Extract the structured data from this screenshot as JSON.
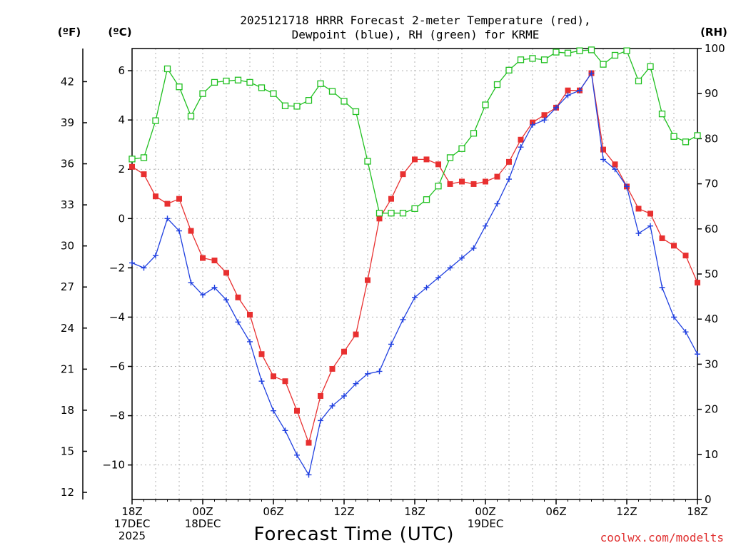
{
  "chart_data": {
    "type": "line",
    "title_line1": "2025121718 HRRR Forecast 2-meter Temperature (red),",
    "title_line2": "Dewpoint (blue), RH (green) for KRME",
    "xlabel": "Forecast Time (UTC)",
    "credit": "coolwx.com/modelts",
    "unit_left_f": "(ºF)",
    "unit_left_c": "(ºC)",
    "unit_right": "(RH)",
    "x_range_hours": [
      0,
      48
    ],
    "ylim_c": [
      -11.4,
      6.9
    ],
    "ylim_rh": [
      0,
      100
    ],
    "fahrenheit_ticks": [
      12,
      15,
      18,
      21,
      24,
      27,
      30,
      33,
      36,
      39,
      42
    ],
    "celsius_ticks": [
      -10,
      -8,
      -6,
      -4,
      -2,
      0,
      2,
      4,
      6
    ],
    "rh_ticks": [
      0,
      10,
      20,
      30,
      40,
      50,
      60,
      70,
      80,
      90,
      100
    ],
    "x_ticks": [
      {
        "hour": 0,
        "lines": [
          "18Z",
          "17DEC",
          "2025"
        ]
      },
      {
        "hour": 6,
        "lines": [
          "00Z",
          "18DEC"
        ]
      },
      {
        "hour": 12,
        "lines": [
          "06Z"
        ]
      },
      {
        "hour": 18,
        "lines": [
          "12Z"
        ]
      },
      {
        "hour": 24,
        "lines": [
          "18Z"
        ]
      },
      {
        "hour": 30,
        "lines": [
          "00Z",
          "19DEC"
        ]
      },
      {
        "hour": 36,
        "lines": [
          "06Z"
        ]
      },
      {
        "hour": 42,
        "lines": [
          "12Z"
        ]
      },
      {
        "hour": 48,
        "lines": [
          "18Z"
        ]
      }
    ],
    "series": [
      {
        "name": "2-meter Temperature (°C)",
        "color": "#e83030",
        "marker": "filled-square",
        "axis": "celsius",
        "values": [
          2.1,
          1.8,
          0.9,
          0.6,
          0.8,
          -0.5,
          -1.6,
          -1.7,
          -2.2,
          -3.2,
          -3.9,
          -5.5,
          -6.4,
          -6.6,
          -7.8,
          -9.1,
          -7.2,
          -6.1,
          -5.4,
          -4.7,
          -2.5,
          0.0,
          0.8,
          1.8,
          2.4,
          2.4,
          2.2,
          1.4,
          1.5,
          1.4,
          1.5,
          1.7,
          2.3,
          3.2,
          3.9,
          4.2,
          4.5,
          5.2,
          5.2,
          5.9,
          2.8,
          2.2,
          1.3,
          0.4,
          0.2,
          -0.8,
          -1.1,
          -1.5,
          -2.6
        ]
      },
      {
        "name": "Dewpoint (°C)",
        "color": "#2040e0",
        "marker": "plus",
        "axis": "celsius",
        "values": [
          -1.8,
          -2.0,
          -1.5,
          0.0,
          -0.5,
          -2.6,
          -3.1,
          -2.8,
          -3.3,
          -4.2,
          -5.0,
          -6.6,
          -7.8,
          -8.6,
          -9.6,
          -10.4,
          -8.2,
          -7.6,
          -7.2,
          -6.7,
          -6.3,
          -6.2,
          -5.1,
          -4.1,
          -3.2,
          -2.8,
          -2.4,
          -2.0,
          -1.6,
          -1.2,
          -0.3,
          0.6,
          1.6,
          2.9,
          3.8,
          4.0,
          4.5,
          5.0,
          5.2,
          5.9,
          2.4,
          2.0,
          1.3,
          -0.6,
          -0.3,
          -2.8,
          -4.0,
          -4.6,
          -5.5
        ]
      },
      {
        "name": "RH (%)",
        "color": "#20c020",
        "marker": "open-square",
        "axis": "rh",
        "values": [
          75.5,
          75.8,
          84.0,
          95.5,
          91.5,
          85.0,
          90.0,
          92.5,
          92.8,
          93.0,
          92.5,
          91.3,
          90.0,
          87.3,
          87.2,
          88.5,
          92.2,
          90.5,
          88.3,
          86.0,
          75.0,
          63.5,
          63.5,
          63.5,
          64.5,
          66.5,
          69.5,
          75.8,
          77.8,
          81.2,
          87.5,
          92.0,
          95.2,
          97.5,
          97.8,
          97.5,
          99.2,
          99.0,
          99.5,
          99.7,
          96.5,
          98.5,
          99.5,
          92.8,
          96.0,
          85.5,
          80.5,
          79.3,
          80.7
        ]
      }
    ]
  }
}
